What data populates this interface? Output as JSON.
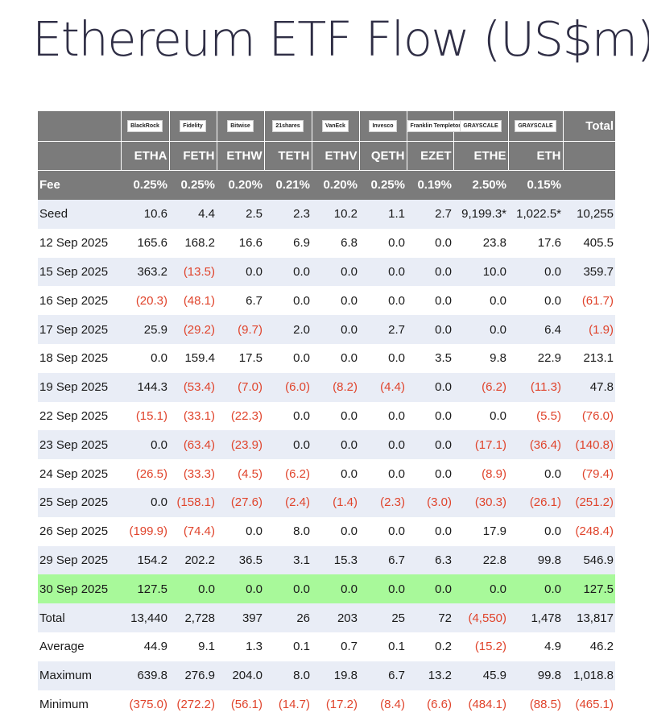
{
  "title": "Ethereum ETF Flow (US$m)",
  "chart_data": {
    "type": "table",
    "issuers": [
      "BlackRock",
      "Fidelity",
      "Bitwise",
      "21shares",
      "VanEck",
      "Invesco",
      "Franklin Templeton",
      "GRAYSCALE",
      "GRAYSCALE"
    ],
    "total_header": "Total",
    "tickers": [
      "ETHA",
      "FETH",
      "ETHW",
      "TETH",
      "ETHV",
      "QETH",
      "EZET",
      "ETHE",
      "ETH"
    ],
    "fee_label": "Fee",
    "fees": [
      "0.25%",
      "0.25%",
      "0.20%",
      "0.21%",
      "0.20%",
      "0.25%",
      "0.19%",
      "2.50%",
      "0.15%"
    ],
    "rows": [
      {
        "label": "Seed",
        "values": [
          "10.6",
          "4.4",
          "2.5",
          "2.3",
          "10.2",
          "1.1",
          "2.7",
          "9,199.3*",
          "1,022.5*",
          "10,255"
        ]
      },
      {
        "label": "12 Sep 2025",
        "values": [
          "165.6",
          "168.2",
          "16.6",
          "6.9",
          "6.8",
          "0.0",
          "0.0",
          "23.8",
          "17.6",
          "405.5"
        ]
      },
      {
        "label": "15 Sep 2025",
        "values": [
          "363.2",
          "(13.5)",
          "0.0",
          "0.0",
          "0.0",
          "0.0",
          "0.0",
          "10.0",
          "0.0",
          "359.7"
        ]
      },
      {
        "label": "16 Sep 2025",
        "values": [
          "(20.3)",
          "(48.1)",
          "6.7",
          "0.0",
          "0.0",
          "0.0",
          "0.0",
          "0.0",
          "0.0",
          "(61.7)"
        ]
      },
      {
        "label": "17 Sep 2025",
        "values": [
          "25.9",
          "(29.2)",
          "(9.7)",
          "2.0",
          "0.0",
          "2.7",
          "0.0",
          "0.0",
          "6.4",
          "(1.9)"
        ]
      },
      {
        "label": "18 Sep 2025",
        "values": [
          "0.0",
          "159.4",
          "17.5",
          "0.0",
          "0.0",
          "0.0",
          "3.5",
          "9.8",
          "22.9",
          "213.1"
        ]
      },
      {
        "label": "19 Sep 2025",
        "values": [
          "144.3",
          "(53.4)",
          "(7.0)",
          "(6.0)",
          "(8.2)",
          "(4.4)",
          "0.0",
          "(6.2)",
          "(11.3)",
          "47.8"
        ]
      },
      {
        "label": "22 Sep 2025",
        "values": [
          "(15.1)",
          "(33.1)",
          "(22.3)",
          "0.0",
          "0.0",
          "0.0",
          "0.0",
          "0.0",
          "(5.5)",
          "(76.0)"
        ]
      },
      {
        "label": "23 Sep 2025",
        "values": [
          "0.0",
          "(63.4)",
          "(23.9)",
          "0.0",
          "0.0",
          "0.0",
          "0.0",
          "(17.1)",
          "(36.4)",
          "(140.8)"
        ]
      },
      {
        "label": "24 Sep 2025",
        "values": [
          "(26.5)",
          "(33.3)",
          "(4.5)",
          "(6.2)",
          "0.0",
          "0.0",
          "0.0",
          "(8.9)",
          "0.0",
          "(79.4)"
        ]
      },
      {
        "label": "25 Sep 2025",
        "values": [
          "0.0",
          "(158.1)",
          "(27.6)",
          "(2.4)",
          "(1.4)",
          "(2.3)",
          "(3.0)",
          "(30.3)",
          "(26.1)",
          "(251.2)"
        ]
      },
      {
        "label": "26 Sep 2025",
        "values": [
          "(199.9)",
          "(74.4)",
          "0.0",
          "8.0",
          "0.0",
          "0.0",
          "0.0",
          "17.9",
          "0.0",
          "(248.4)"
        ]
      },
      {
        "label": "29 Sep 2025",
        "values": [
          "154.2",
          "202.2",
          "36.5",
          "3.1",
          "15.3",
          "6.7",
          "6.3",
          "22.8",
          "99.8",
          "546.9"
        ]
      },
      {
        "label": "30 Sep 2025",
        "values": [
          "127.5",
          "0.0",
          "0.0",
          "0.0",
          "0.0",
          "0.0",
          "0.0",
          "0.0",
          "0.0",
          "127.5"
        ],
        "highlight": true
      },
      {
        "label": "Total",
        "values": [
          "13,440",
          "2,728",
          "397",
          "26",
          "203",
          "25",
          "72",
          "(4,550)",
          "1,478",
          "13,817"
        ]
      },
      {
        "label": "Average",
        "values": [
          "44.9",
          "9.1",
          "1.3",
          "0.1",
          "0.7",
          "0.1",
          "0.2",
          "(15.2)",
          "4.9",
          "46.2"
        ]
      },
      {
        "label": "Maximum",
        "values": [
          "639.8",
          "276.9",
          "204.0",
          "8.0",
          "19.8",
          "6.7",
          "13.2",
          "45.9",
          "99.8",
          "1,018.8"
        ]
      },
      {
        "label": "Minimum",
        "values": [
          "(375.0)",
          "(272.2)",
          "(56.1)",
          "(14.7)",
          "(17.2)",
          "(8.4)",
          "(6.6)",
          "(484.1)",
          "(88.5)",
          "(465.1)"
        ]
      }
    ]
  },
  "colors": {
    "header_bg": "#7b7b7b",
    "shade_bg": "#e9edf6",
    "highlight_bg": "#a8f99a",
    "negative": "#e0442c",
    "title": "#2f2e45"
  }
}
